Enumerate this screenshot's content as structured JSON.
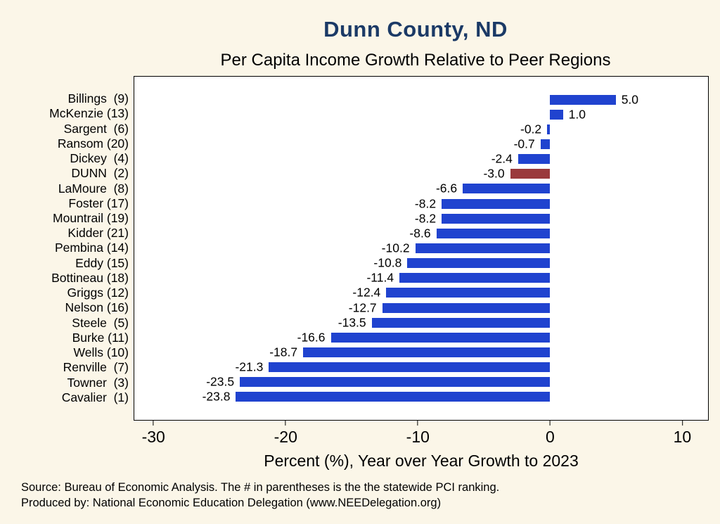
{
  "header": {
    "title": "Dunn County, ND",
    "subtitle": "Per Capita Income Growth Relative to Peer Regions"
  },
  "theme": {
    "page_background": "#fbf6e8",
    "plot_background": "#ffffff",
    "title_color": "#1b3a66",
    "bar_color": "#2043cf",
    "highlight_color": "#9a3a3c"
  },
  "chart_data": {
    "type": "bar",
    "orientation": "horizontal",
    "title": "Dunn County, ND",
    "subtitle": "Per Capita Income Growth Relative to Peer Regions",
    "categories": [
      "Billings  (9)",
      "McKenzie (13)",
      "Sargent  (6)",
      "Ransom (20)",
      "Dickey  (4)",
      "DUNN  (2)",
      "LaMoure  (8)",
      "Foster (17)",
      "Mountrail (19)",
      "Kidder (21)",
      "Pembina (14)",
      "Eddy (15)",
      "Bottineau (18)",
      "Griggs (12)",
      "Nelson (16)",
      "Steele  (5)",
      "Burke (11)",
      "Wells (10)",
      "Renville  (7)",
      "Towner  (3)",
      "Cavalier  (1)"
    ],
    "values": [
      5.0,
      1.0,
      -0.2,
      -0.7,
      -2.4,
      -3.0,
      -6.6,
      -8.2,
      -8.2,
      -8.6,
      -10.2,
      -10.8,
      -11.4,
      -12.4,
      -12.7,
      -13.5,
      -16.6,
      -18.7,
      -21.3,
      -23.5,
      -23.8
    ],
    "value_labels": [
      "5.0",
      "1.0",
      "-0.2",
      "-0.7",
      "-2.4",
      "-3.0",
      "-6.6",
      "-8.2",
      "-8.2",
      "-8.6",
      "-10.2",
      "-10.8",
      "-11.4",
      "-12.4",
      "-12.7",
      "-13.5",
      "-16.6",
      "-18.7",
      "-21.3",
      "-23.5",
      "-23.8"
    ],
    "highlight_category": "DUNN  (2)",
    "highlight_index": 5,
    "xlabel": "Percent (%), Year over Year Growth to 2023",
    "xticks": [
      -30,
      -20,
      -10,
      0,
      10
    ],
    "xlim": [
      -31.5,
      12
    ],
    "grid": false,
    "legend": false
  },
  "footer": {
    "source": "Source: Bureau of Economic Analysis. The # in parentheses is the the statewide PCI ranking.",
    "produced_by": "Produced by: National Economic Education Delegation (www.NEEDelegation.org)"
  }
}
